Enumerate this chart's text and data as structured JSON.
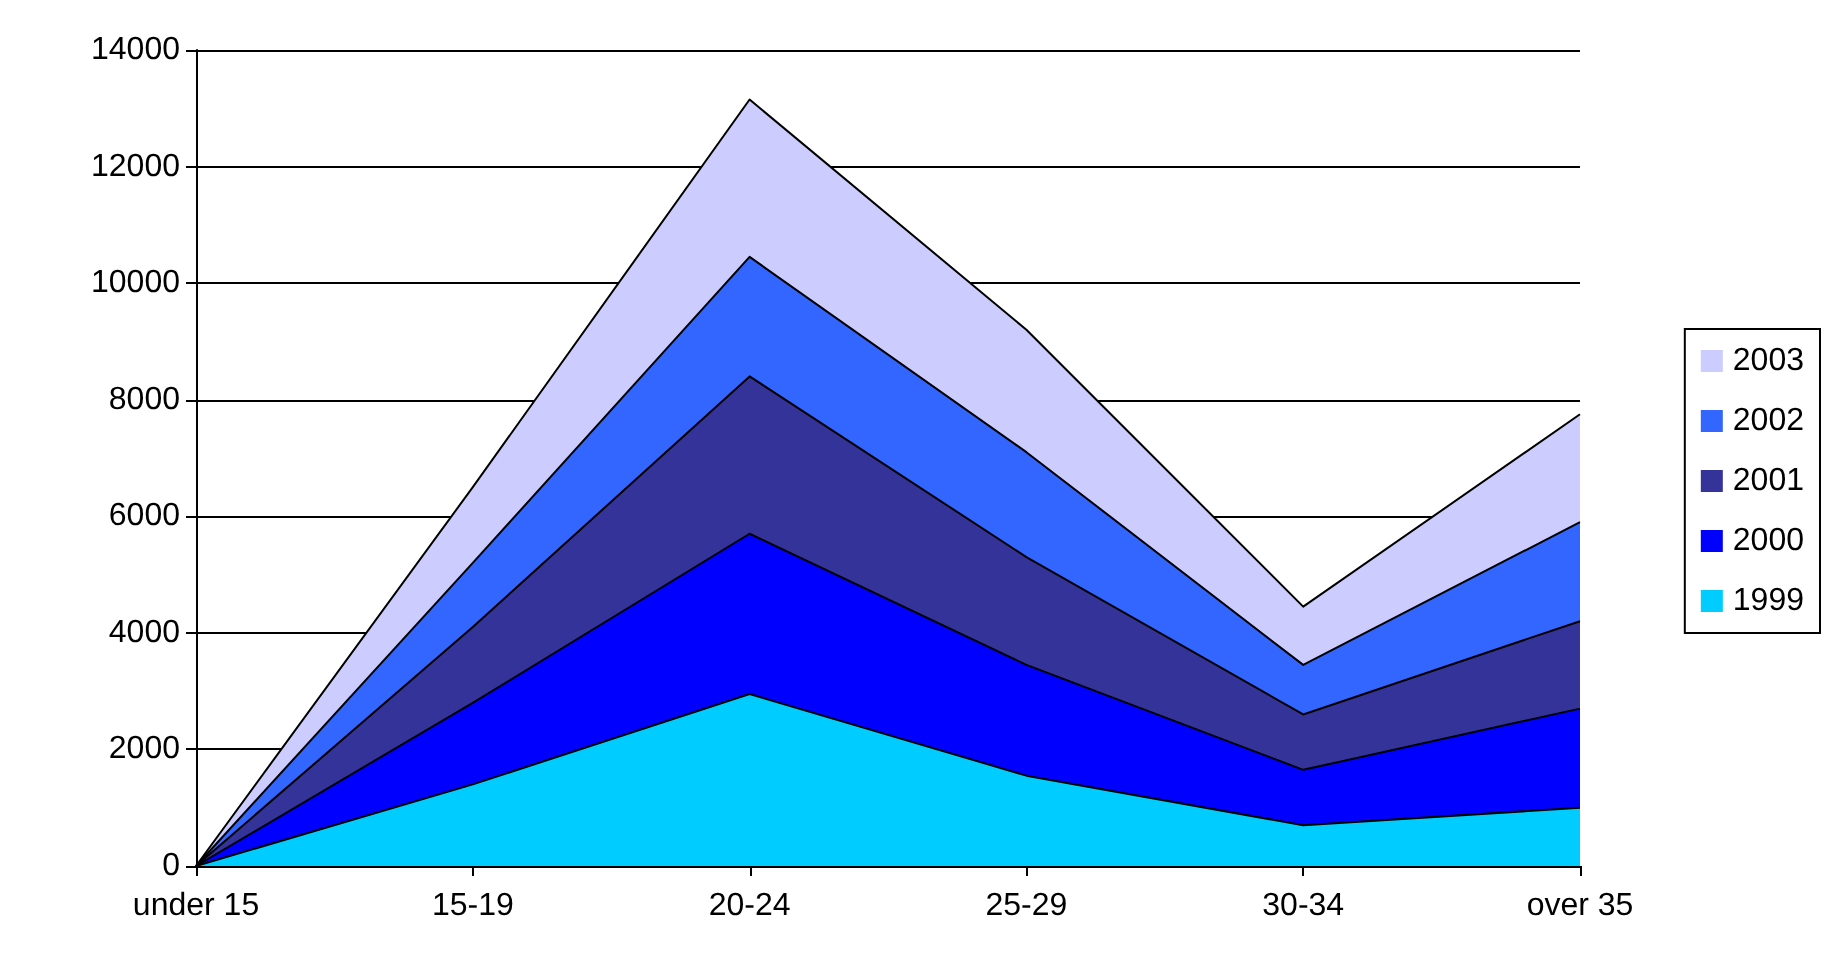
{
  "chart_data": {
    "type": "area",
    "stacked": true,
    "categories": [
      "under 15",
      "15-19",
      "20-24",
      "25-29",
      "30-34",
      "over 35"
    ],
    "series": [
      {
        "name": "1999",
        "color": "#00ccff",
        "values": [
          0,
          1400,
          2950,
          1550,
          700,
          1000
        ]
      },
      {
        "name": "2000",
        "color": "#0000ff",
        "values": [
          0,
          1400,
          2750,
          1900,
          950,
          1700
        ]
      },
      {
        "name": "2001",
        "color": "#333399",
        "values": [
          0,
          1300,
          2700,
          1850,
          950,
          1500
        ]
      },
      {
        "name": "2002",
        "color": "#3366ff",
        "values": [
          0,
          1100,
          2050,
          1800,
          850,
          1700
        ]
      },
      {
        "name": "2003",
        "color": "#ccccff",
        "values": [
          0,
          1300,
          2700,
          2100,
          1000,
          1850
        ]
      }
    ],
    "ylim": [
      0,
      14000
    ],
    "yticks": [
      0,
      2000,
      4000,
      6000,
      8000,
      10000,
      12000,
      14000
    ],
    "grid": "y",
    "legend": "right",
    "marker": "none"
  }
}
